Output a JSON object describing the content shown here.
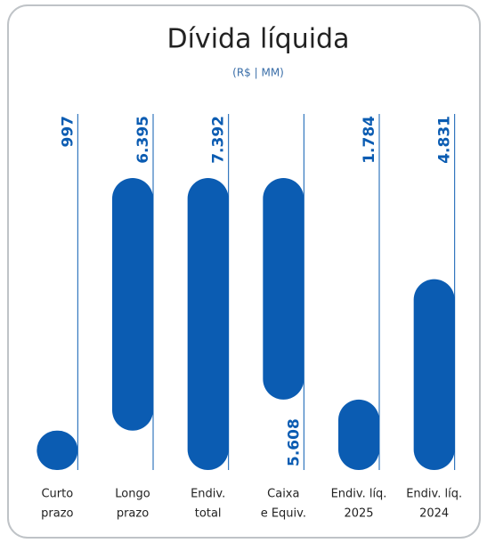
{
  "chart_data": {
    "type": "waterfall",
    "title": "Dívida líquida",
    "subtitle": "(R$ | MM)",
    "categories": [
      [
        "Curto",
        "prazo"
      ],
      [
        "Longo",
        "prazo"
      ],
      [
        "Endiv.",
        "total"
      ],
      [
        "Caixa",
        "e Equiv."
      ],
      [
        "Endiv. líq.",
        "2025"
      ],
      [
        "Endiv. líq.",
        "2024"
      ]
    ],
    "values": [
      997,
      6395,
      7392,
      5608,
      1784,
      4831
    ],
    "value_labels": [
      "997",
      "6.395",
      "7.392",
      "5.608",
      "1.784",
      "4.831"
    ],
    "measures": [
      "absolute",
      "increase",
      "total",
      "decrease",
      "total",
      "absolute"
    ],
    "color": "#0b5cb2",
    "ylim": [
      0,
      7392
    ]
  }
}
